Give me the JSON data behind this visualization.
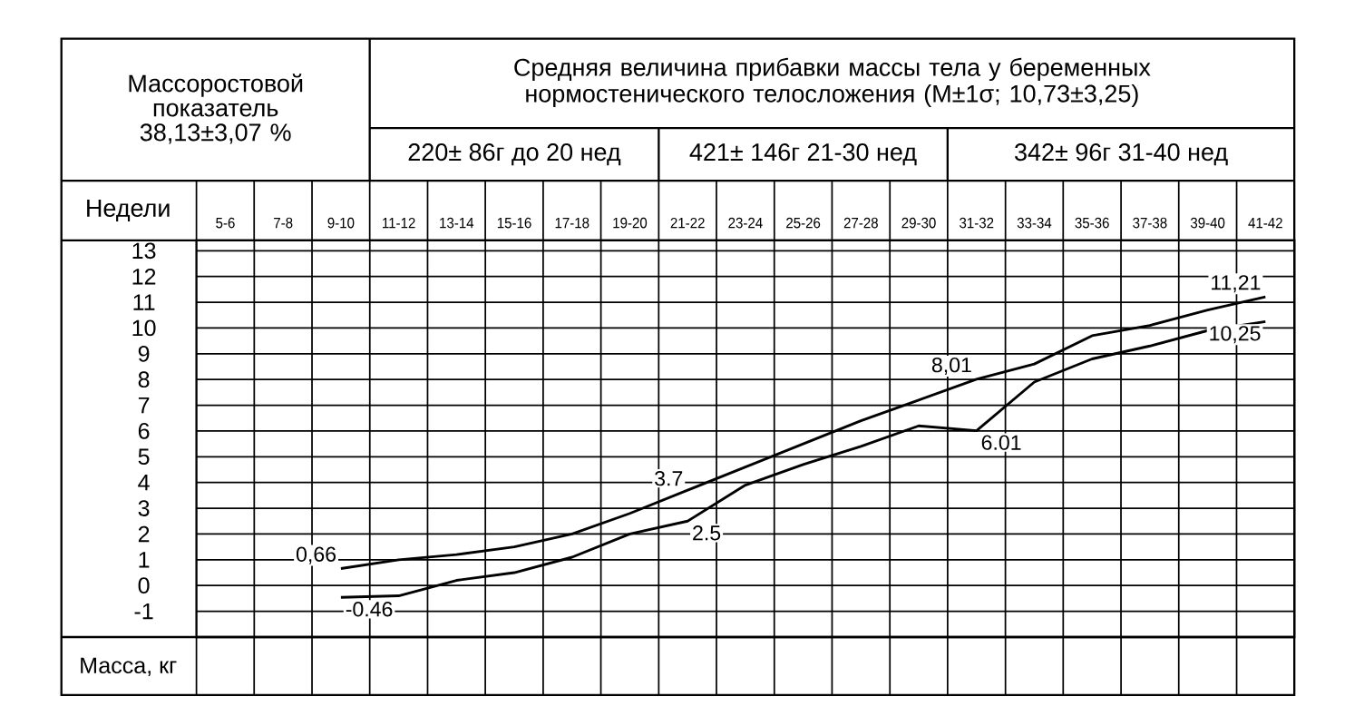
{
  "chart_data": {
    "type": "line",
    "title": "Средняя величина прибавки массы тела у беременных нормостенического телосложения (M±1σ; 10,73±3,25)",
    "annotations": [
      "Массоростовой показатель 38,13±3,07 %",
      "220± 86г  до 20 нед",
      "421± 146г 21-30 нед",
      "342± 96г 31-40 нед",
      "Недели",
      "Масса, кг"
    ],
    "categories": [
      "5-6",
      "7-8",
      "9-10",
      "11-12",
      "13-14",
      "15-16",
      "17-18",
      "19-20",
      "21-22",
      "23-24",
      "25-26",
      "27-28",
      "29-30",
      "31-32",
      "33-34",
      "35-36",
      "37-38",
      "39-40",
      "41-42"
    ],
    "series": [
      {
        "color": "#000000",
        "values": [
          null,
          null,
          0.66,
          1.0,
          1.2,
          1.5,
          2.0,
          2.8,
          3.7,
          4.6,
          5.5,
          6.4,
          7.2,
          8.01,
          8.6,
          9.7,
          10.1,
          10.7,
          11.21
        ],
        "value_labels": [
          null,
          null,
          "0,66",
          null,
          null,
          null,
          null,
          null,
          "3.7",
          null,
          null,
          null,
          null,
          "8,01",
          null,
          null,
          null,
          null,
          "11,21"
        ]
      },
      {
        "color": "#000000",
        "values": [
          null,
          null,
          -0.46,
          -0.4,
          0.2,
          0.5,
          1.1,
          2.0,
          2.5,
          3.9,
          4.7,
          5.4,
          6.2,
          6.01,
          7.9,
          8.8,
          9.3,
          9.9,
          10.25
        ],
        "value_labels": [
          null,
          null,
          "-0.46",
          null,
          null,
          null,
          null,
          null,
          "2.5",
          null,
          null,
          null,
          null,
          "6.01",
          null,
          null,
          null,
          null,
          "10,25"
        ]
      }
    ],
    "ylim": [
      -2,
      13.4
    ],
    "yticks": [
      -1,
      0,
      1,
      2,
      3,
      4,
      5,
      6,
      7,
      8,
      9,
      10,
      11,
      12,
      13
    ],
    "grid": true
  }
}
